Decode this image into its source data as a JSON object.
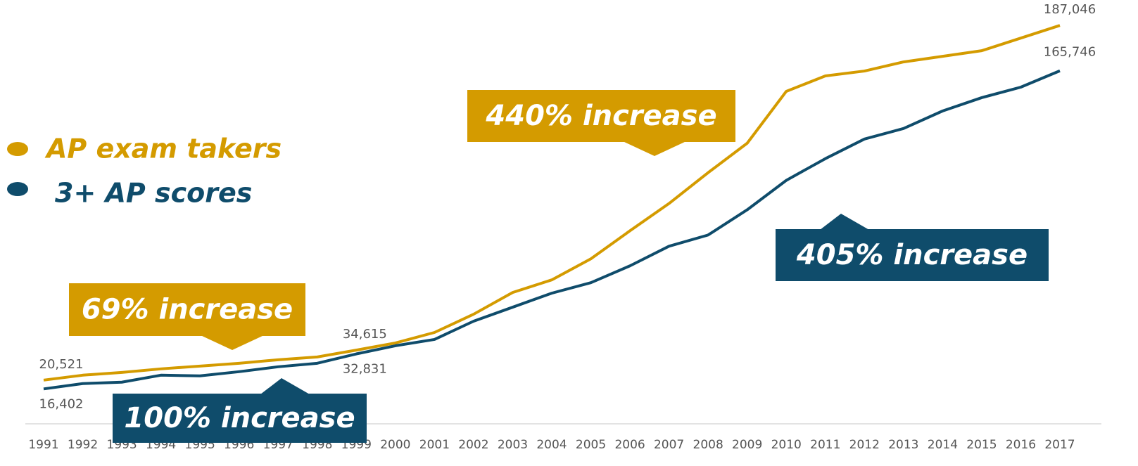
{
  "chart_data": {
    "type": "line",
    "categories": [
      "1991",
      "1992",
      "1993",
      "1994",
      "1995",
      "1996",
      "1997",
      "1998",
      "1999",
      "2000",
      "2001",
      "2002",
      "2003",
      "2004",
      "2005",
      "2006",
      "2007",
      "2008",
      "2009",
      "2010",
      "2011",
      "2012",
      "2013",
      "2014",
      "2015",
      "2016",
      "2017"
    ],
    "series": [
      {
        "name": "AP exam takers",
        "color": "#d49b00",
        "values": [
          20521,
          22837,
          24150,
          25800,
          27110,
          28430,
          30080,
          31400,
          34615,
          37970,
          42900,
          51460,
          61660,
          67580,
          77460,
          90620,
          103450,
          117930,
          131750,
          156100,
          163340,
          165640,
          169920,
          172550,
          175180,
          181100,
          187046
        ],
        "value_labels": [
          "20,521",
          null,
          null,
          null,
          null,
          null,
          null,
          null,
          "34,615",
          null,
          null,
          null,
          null,
          null,
          null,
          null,
          null,
          null,
          null,
          null,
          null,
          null,
          null,
          null,
          null,
          null,
          "187,046"
        ]
      },
      {
        "name": "3+ AP scores",
        "color": "#0f4c6b",
        "values": [
          16402,
          18890,
          19550,
          22840,
          22510,
          24480,
          26790,
          28430,
          32831,
          36660,
          39620,
          48180,
          54760,
          61340,
          66270,
          74170,
          83380,
          88650,
          100490,
          114310,
          124510,
          133720,
          138660,
          146890,
          153140,
          158070,
          165746
        ],
        "value_labels": [
          "16,402",
          null,
          null,
          null,
          null,
          null,
          null,
          null,
          "32,831",
          null,
          null,
          null,
          null,
          null,
          null,
          null,
          null,
          null,
          null,
          null,
          null,
          null,
          null,
          null,
          null,
          null,
          "165,746"
        ]
      }
    ],
    "ylim": [
      0,
      198000
    ],
    "legend": "upper left",
    "annotations": [
      {
        "text": "69% increase",
        "color": "#d49b00"
      },
      {
        "text": "100% increase",
        "color": "#0f4c6b"
      },
      {
        "text": "440% increase",
        "color": "#d49b00"
      },
      {
        "text": "405% increase",
        "color": "#0f4c6b"
      }
    ]
  }
}
